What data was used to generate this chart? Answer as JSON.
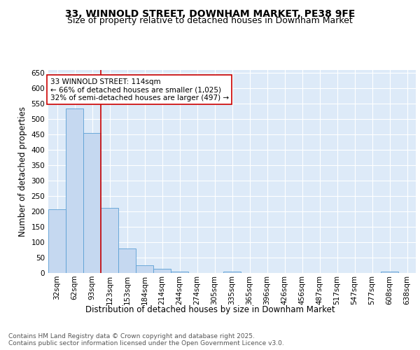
{
  "title_line1": "33, WINNOLD STREET, DOWNHAM MARKET, PE38 9FE",
  "title_line2": "Size of property relative to detached houses in Downham Market",
  "xlabel": "Distribution of detached houses by size in Downham Market",
  "ylabel": "Number of detached properties",
  "bar_color": "#c5d8f0",
  "bar_edge_color": "#5a9fd4",
  "background_color": "#ddeaf8",
  "grid_color": "#ffffff",
  "categories": [
    "32sqm",
    "62sqm",
    "93sqm",
    "123sqm",
    "153sqm",
    "184sqm",
    "214sqm",
    "244sqm",
    "274sqm",
    "305sqm",
    "335sqm",
    "365sqm",
    "396sqm",
    "426sqm",
    "456sqm",
    "487sqm",
    "517sqm",
    "547sqm",
    "577sqm",
    "608sqm",
    "638sqm"
  ],
  "values": [
    208,
    535,
    455,
    212,
    80,
    25,
    13,
    5,
    0,
    0,
    5,
    0,
    0,
    0,
    0,
    0,
    0,
    0,
    0,
    5,
    0
  ],
  "vline_x": 2.5,
  "vline_color": "#cc0000",
  "annotation_text": "33 WINNOLD STREET: 114sqm\n← 66% of detached houses are smaller (1,025)\n32% of semi-detached houses are larger (497) →",
  "annotation_box_color": "#ffffff",
  "annotation_box_edge": "#cc0000",
  "ylim": [
    0,
    660
  ],
  "yticks": [
    0,
    50,
    100,
    150,
    200,
    250,
    300,
    350,
    400,
    450,
    500,
    550,
    600,
    650
  ],
  "footnote": "Contains HM Land Registry data © Crown copyright and database right 2025.\nContains public sector information licensed under the Open Government Licence v3.0.",
  "title_fontsize": 10,
  "subtitle_fontsize": 9,
  "axis_label_fontsize": 8.5,
  "tick_fontsize": 7.5,
  "annotation_fontsize": 7.5,
  "footnote_fontsize": 6.5
}
